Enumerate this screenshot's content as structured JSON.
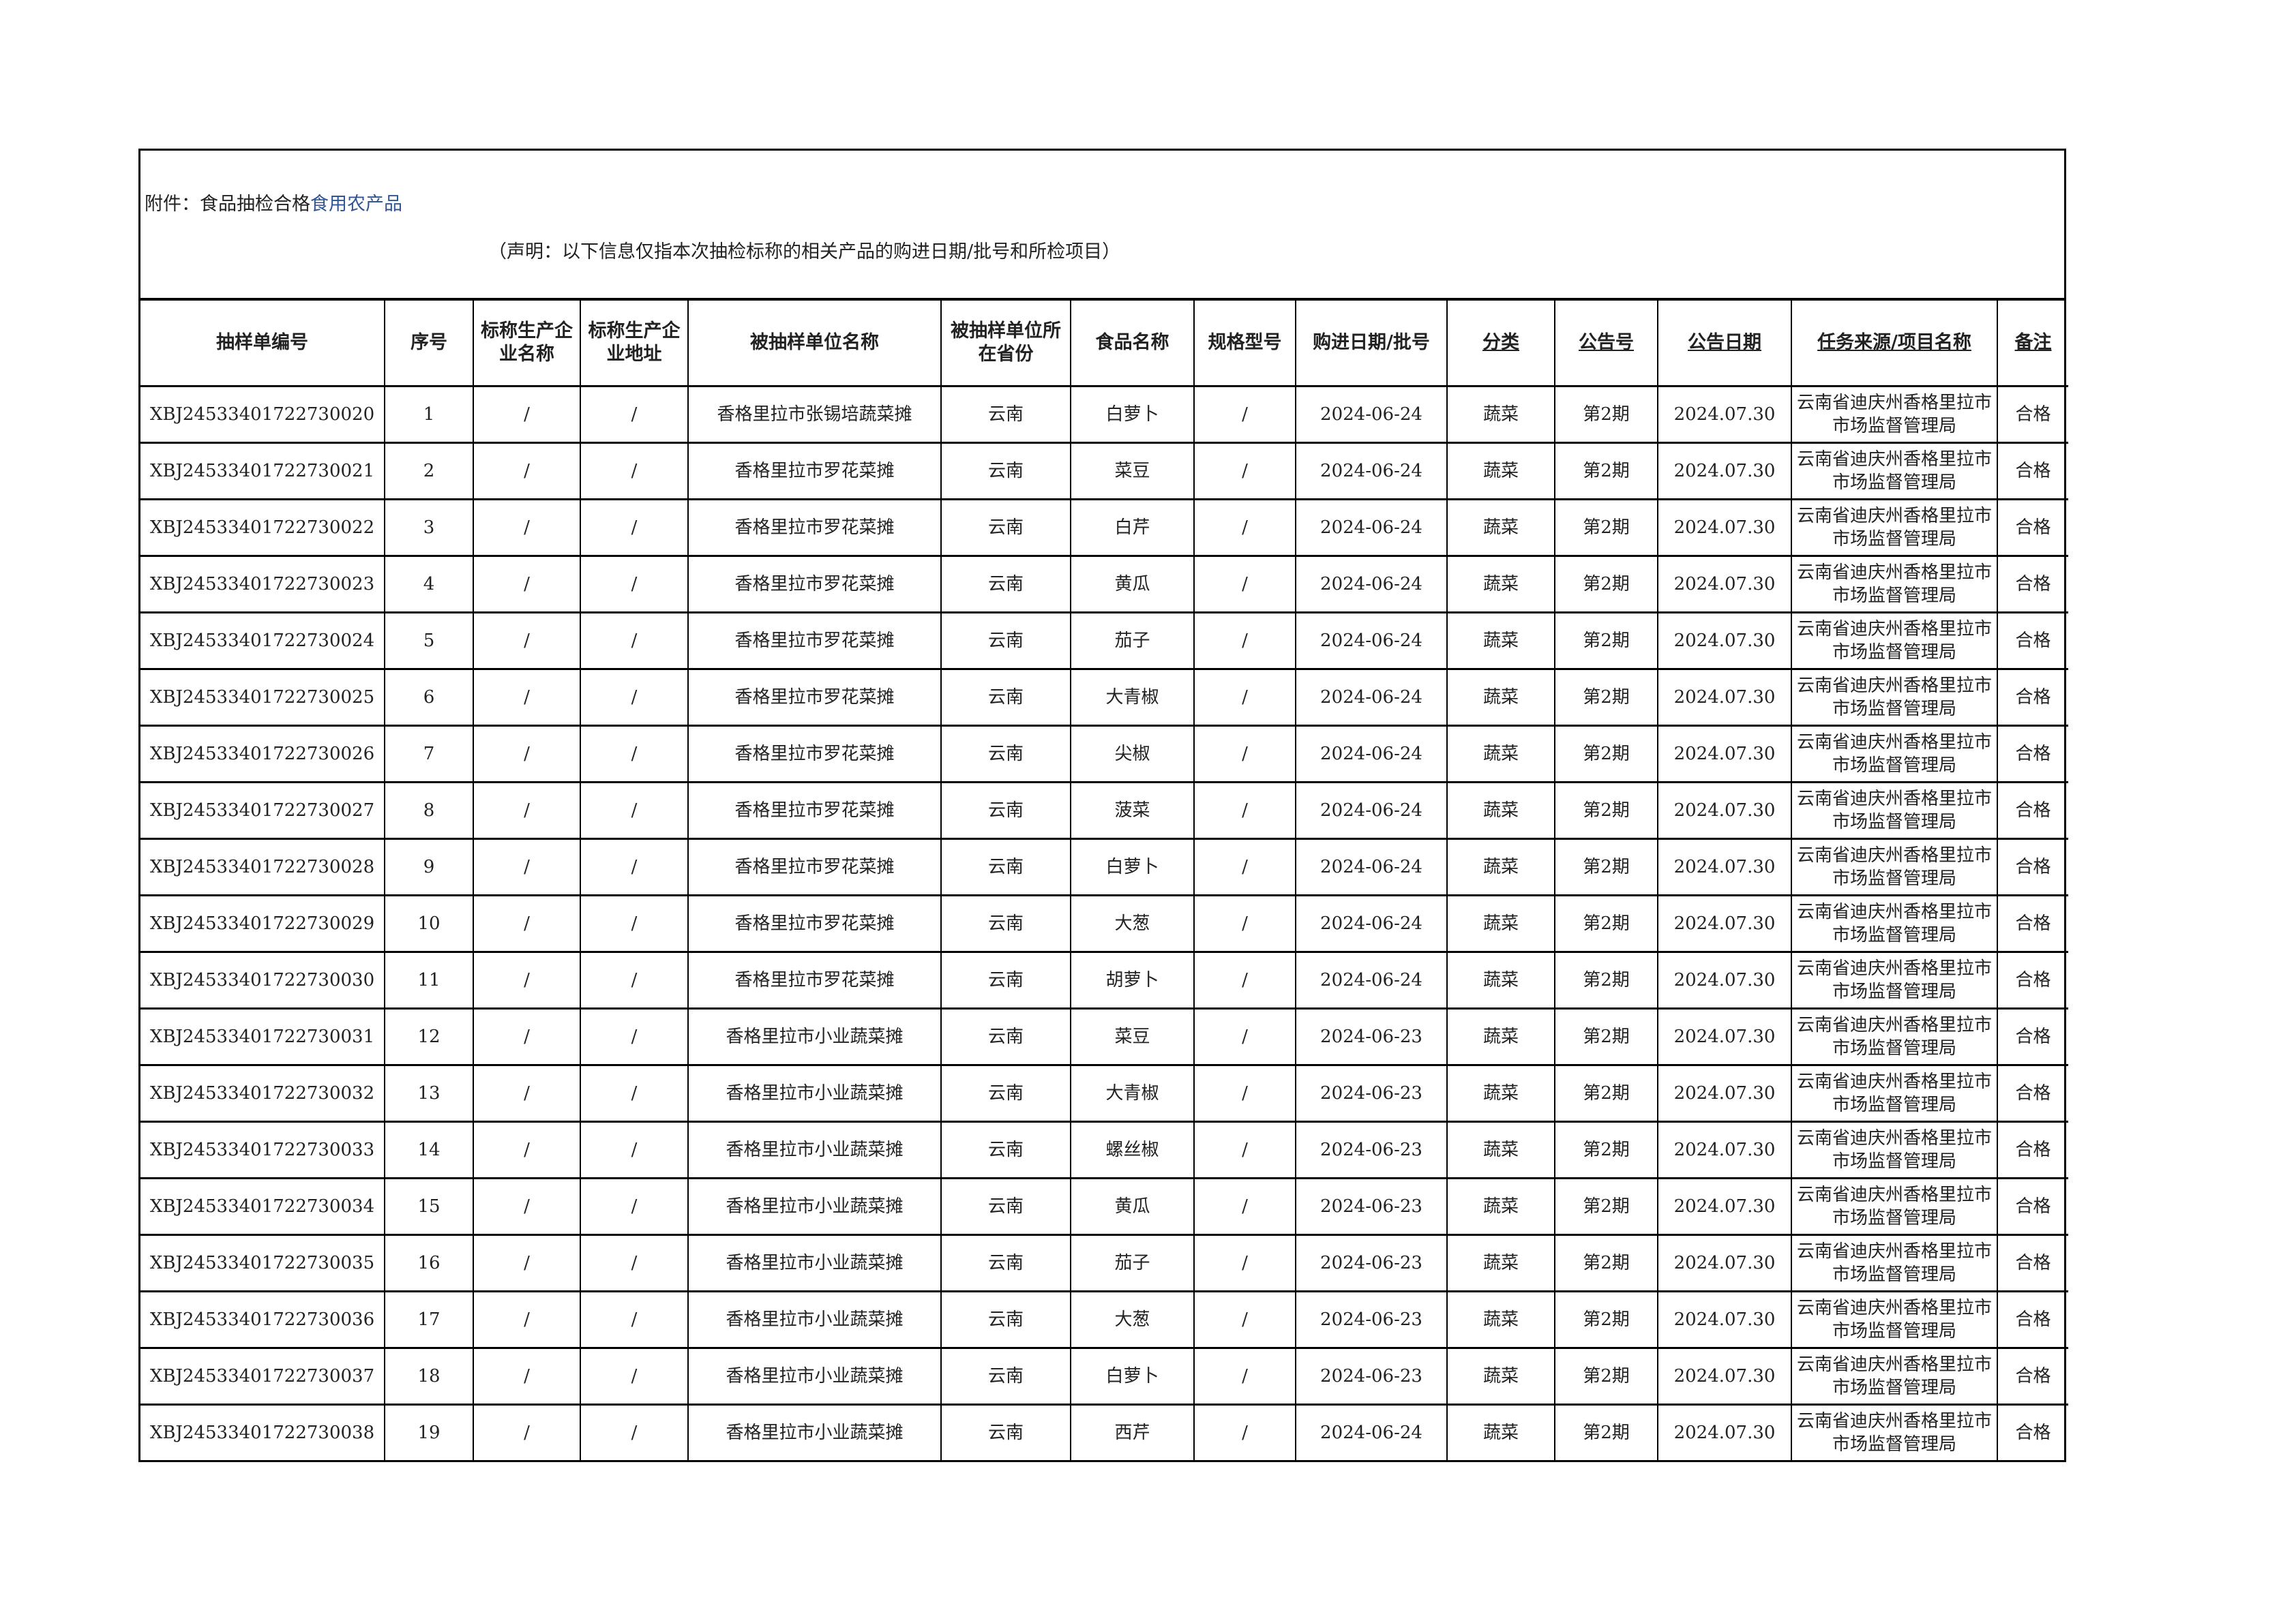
{
  "title_prefix": "附件：食品抽检合格",
  "title_suffix": "食用农产品",
  "notice": "（声明：以下信息仅指本次抽检标称的相关产品的购进日期/批号和所检项目）",
  "headers": [
    "抽样单编号",
    "序号",
    "标称生产企业名称",
    "标称生产企业地址",
    "被抽样单位名称",
    "被抽样单位所在省份",
    "食品名称",
    "规格型号",
    "购进日期/批号",
    "分类",
    "公告号",
    "公告日期",
    "任务来源/项目名称",
    "备注"
  ],
  "rows": [
    [
      "XBJ24533401722730020",
      "1",
      "/",
      "/",
      "香格里拉市张锡培蔬菜摊",
      "云南",
      "白萝卜",
      "/",
      "2024-06-24",
      "蔬菜",
      "第2期",
      "2024.07.30",
      "云南省迪庆州香格里拉市市场监督管理局",
      "合格"
    ],
    [
      "XBJ24533401722730021",
      "2",
      "/",
      "/",
      "香格里拉市罗花菜摊",
      "云南",
      "菜豆",
      "/",
      "2024-06-24",
      "蔬菜",
      "第2期",
      "2024.07.30",
      "云南省迪庆州香格里拉市市场监督管理局",
      "合格"
    ],
    [
      "XBJ24533401722730022",
      "3",
      "/",
      "/",
      "香格里拉市罗花菜摊",
      "云南",
      "白芹",
      "/",
      "2024-06-24",
      "蔬菜",
      "第2期",
      "2024.07.30",
      "云南省迪庆州香格里拉市市场监督管理局",
      "合格"
    ],
    [
      "XBJ24533401722730023",
      "4",
      "/",
      "/",
      "香格里拉市罗花菜摊",
      "云南",
      "黄瓜",
      "/",
      "2024-06-24",
      "蔬菜",
      "第2期",
      "2024.07.30",
      "云南省迪庆州香格里拉市市场监督管理局",
      "合格"
    ],
    [
      "XBJ24533401722730024",
      "5",
      "/",
      "/",
      "香格里拉市罗花菜摊",
      "云南",
      "茄子",
      "/",
      "2024-06-24",
      "蔬菜",
      "第2期",
      "2024.07.30",
      "云南省迪庆州香格里拉市市场监督管理局",
      "合格"
    ],
    [
      "XBJ24533401722730025",
      "6",
      "/",
      "/",
      "香格里拉市罗花菜摊",
      "云南",
      "大青椒",
      "/",
      "2024-06-24",
      "蔬菜",
      "第2期",
      "2024.07.30",
      "云南省迪庆州香格里拉市市场监督管理局",
      "合格"
    ],
    [
      "XBJ24533401722730026",
      "7",
      "/",
      "/",
      "香格里拉市罗花菜摊",
      "云南",
      "尖椒",
      "/",
      "2024-06-24",
      "蔬菜",
      "第2期",
      "2024.07.30",
      "云南省迪庆州香格里拉市市场监督管理局",
      "合格"
    ],
    [
      "XBJ24533401722730027",
      "8",
      "/",
      "/",
      "香格里拉市罗花菜摊",
      "云南",
      "菠菜",
      "/",
      "2024-06-24",
      "蔬菜",
      "第2期",
      "2024.07.30",
      "云南省迪庆州香格里拉市市场监督管理局",
      "合格"
    ],
    [
      "XBJ24533401722730028",
      "9",
      "/",
      "/",
      "香格里拉市罗花菜摊",
      "云南",
      "白萝卜",
      "/",
      "2024-06-24",
      "蔬菜",
      "第2期",
      "2024.07.30",
      "云南省迪庆州香格里拉市市场监督管理局",
      "合格"
    ],
    [
      "XBJ24533401722730029",
      "10",
      "/",
      "/",
      "香格里拉市罗花菜摊",
      "云南",
      "大葱",
      "/",
      "2024-06-24",
      "蔬菜",
      "第2期",
      "2024.07.30",
      "云南省迪庆州香格里拉市市场监督管理局",
      "合格"
    ],
    [
      "XBJ24533401722730030",
      "11",
      "/",
      "/",
      "香格里拉市罗花菜摊",
      "云南",
      "胡萝卜",
      "/",
      "2024-06-24",
      "蔬菜",
      "第2期",
      "2024.07.30",
      "云南省迪庆州香格里拉市市场监督管理局",
      "合格"
    ],
    [
      "XBJ24533401722730031",
      "12",
      "/",
      "/",
      "香格里拉市小业蔬菜摊",
      "云南",
      "菜豆",
      "/",
      "2024-06-23",
      "蔬菜",
      "第2期",
      "2024.07.30",
      "云南省迪庆州香格里拉市市场监督管理局",
      "合格"
    ],
    [
      "XBJ24533401722730032",
      "13",
      "/",
      "/",
      "香格里拉市小业蔬菜摊",
      "云南",
      "大青椒",
      "/",
      "2024-06-23",
      "蔬菜",
      "第2期",
      "2024.07.30",
      "云南省迪庆州香格里拉市市场监督管理局",
      "合格"
    ],
    [
      "XBJ24533401722730033",
      "14",
      "/",
      "/",
      "香格里拉市小业蔬菜摊",
      "云南",
      "螺丝椒",
      "/",
      "2024-06-23",
      "蔬菜",
      "第2期",
      "2024.07.30",
      "云南省迪庆州香格里拉市市场监督管理局",
      "合格"
    ],
    [
      "XBJ24533401722730034",
      "15",
      "/",
      "/",
      "香格里拉市小业蔬菜摊",
      "云南",
      "黄瓜",
      "/",
      "2024-06-23",
      "蔬菜",
      "第2期",
      "2024.07.30",
      "云南省迪庆州香格里拉市市场监督管理局",
      "合格"
    ],
    [
      "XBJ24533401722730035",
      "16",
      "/",
      "/",
      "香格里拉市小业蔬菜摊",
      "云南",
      "茄子",
      "/",
      "2024-06-23",
      "蔬菜",
      "第2期",
      "2024.07.30",
      "云南省迪庆州香格里拉市市场监督管理局",
      "合格"
    ],
    [
      "XBJ24533401722730036",
      "17",
      "/",
      "/",
      "香格里拉市小业蔬菜摊",
      "云南",
      "大葱",
      "/",
      "2024-06-23",
      "蔬菜",
      "第2期",
      "2024.07.30",
      "云南省迪庆州香格里拉市市场监督管理局",
      "合格"
    ],
    [
      "XBJ24533401722730037",
      "18",
      "/",
      "/",
      "香格里拉市小业蔬菜摊",
      "云南",
      "白萝卜",
      "/",
      "2024-06-23",
      "蔬菜",
      "第2期",
      "2024.07.30",
      "云南省迪庆州香格里拉市市场监督管理局",
      "合格"
    ],
    [
      "XBJ24533401722730038",
      "19",
      "/",
      "/",
      "香格里拉市小业蔬菜摊",
      "云南",
      "西芹",
      "/",
      "2024-06-24",
      "蔬菜",
      "第2期",
      "2024.07.30",
      "云南省迪庆州香格里拉市市场监督管理局",
      "合格"
    ]
  ]
}
